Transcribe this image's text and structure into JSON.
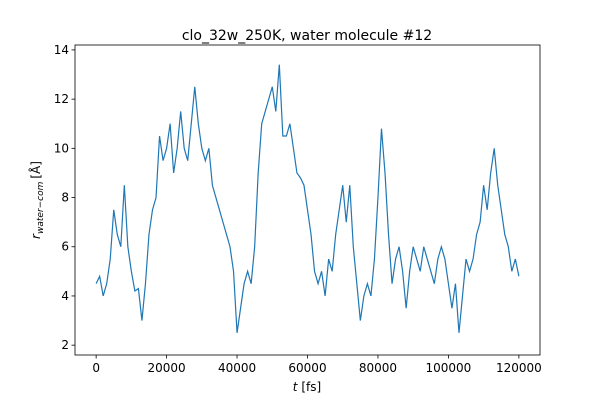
{
  "chart_data": {
    "type": "line",
    "title": "clo_32w_250K, water molecule #12",
    "xlabel_symbol": "t",
    "xlabel_unit": "[fs]",
    "ylabel_symbol": "r",
    "ylabel_subscript": "water−com",
    "ylabel_unit": "[Å]",
    "x": [
      0,
      1000,
      2000,
      3000,
      4000,
      5000,
      6000,
      7000,
      8000,
      9000,
      10000,
      11000,
      12000,
      13000,
      14000,
      15000,
      16000,
      17000,
      18000,
      19000,
      20000,
      21000,
      22000,
      23000,
      24000,
      25000,
      26000,
      27000,
      28000,
      29000,
      30000,
      31000,
      32000,
      33000,
      34000,
      35000,
      36000,
      37000,
      38000,
      39000,
      40000,
      41000,
      42000,
      43000,
      44000,
      45000,
      46000,
      47000,
      48000,
      49000,
      50000,
      51000,
      52000,
      53000,
      54000,
      55000,
      56000,
      57000,
      58000,
      59000,
      60000,
      61000,
      62000,
      63000,
      64000,
      65000,
      66000,
      67000,
      68000,
      69000,
      70000,
      71000,
      72000,
      73000,
      74000,
      75000,
      76000,
      77000,
      78000,
      79000,
      80000,
      81000,
      82000,
      83000,
      84000,
      85000,
      86000,
      87000,
      88000,
      89000,
      90000,
      91000,
      92000,
      93000,
      94000,
      95000,
      96000,
      97000,
      98000,
      99000,
      100000,
      101000,
      102000,
      103000,
      104000,
      105000,
      106000,
      107000,
      108000,
      109000,
      110000,
      111000,
      112000,
      113000,
      114000,
      115000,
      116000,
      117000,
      118000,
      119000,
      120000
    ],
    "series": [
      {
        "name": "water molecule #12",
        "color": "#1f77b4",
        "values": [
          4.5,
          4.8,
          4.0,
          4.5,
          5.5,
          7.5,
          6.5,
          6.0,
          8.5,
          6.0,
          5.0,
          4.2,
          4.3,
          3.0,
          4.5,
          6.5,
          7.5,
          8.0,
          10.5,
          9.5,
          10.0,
          11.0,
          9.0,
          10.0,
          11.5,
          10.0,
          9.5,
          11.0,
          12.5,
          11.0,
          10.0,
          9.5,
          10.0,
          8.5,
          8.0,
          7.5,
          7.0,
          6.5,
          6.0,
          5.0,
          2.5,
          3.5,
          4.5,
          5.0,
          4.5,
          6.0,
          9.0,
          11.0,
          11.5,
          12.0,
          12.5,
          11.5,
          13.4,
          10.5,
          10.5,
          11.0,
          10.0,
          9.0,
          8.8,
          8.5,
          7.5,
          6.5,
          5.0,
          4.5,
          5.0,
          4.0,
          5.5,
          5.0,
          6.5,
          7.5,
          8.5,
          7.0,
          8.5,
          6.0,
          4.5,
          3.0,
          4.0,
          4.5,
          4.0,
          5.5,
          8.0,
          10.8,
          9.0,
          6.5,
          4.5,
          5.5,
          6.0,
          5.0,
          3.5,
          5.0,
          6.0,
          5.5,
          5.0,
          6.0,
          5.5,
          5.0,
          4.5,
          5.5,
          6.0,
          5.5,
          4.5,
          3.5,
          4.5,
          2.5,
          4.0,
          5.5,
          5.0,
          5.5,
          6.5,
          7.0,
          8.5,
          7.5,
          9.0,
          10.0,
          8.5,
          7.5,
          6.5,
          6.0,
          5.0,
          5.5,
          4.8
        ]
      }
    ],
    "xlim": [
      -6000,
      126000
    ],
    "xticks": [
      0,
      20000,
      40000,
      60000,
      80000,
      100000,
      120000
    ],
    "ylim": [
      1.6,
      14.2
    ],
    "yticks": [
      2,
      4,
      6,
      8,
      10,
      12,
      14
    ],
    "grid": false
  }
}
